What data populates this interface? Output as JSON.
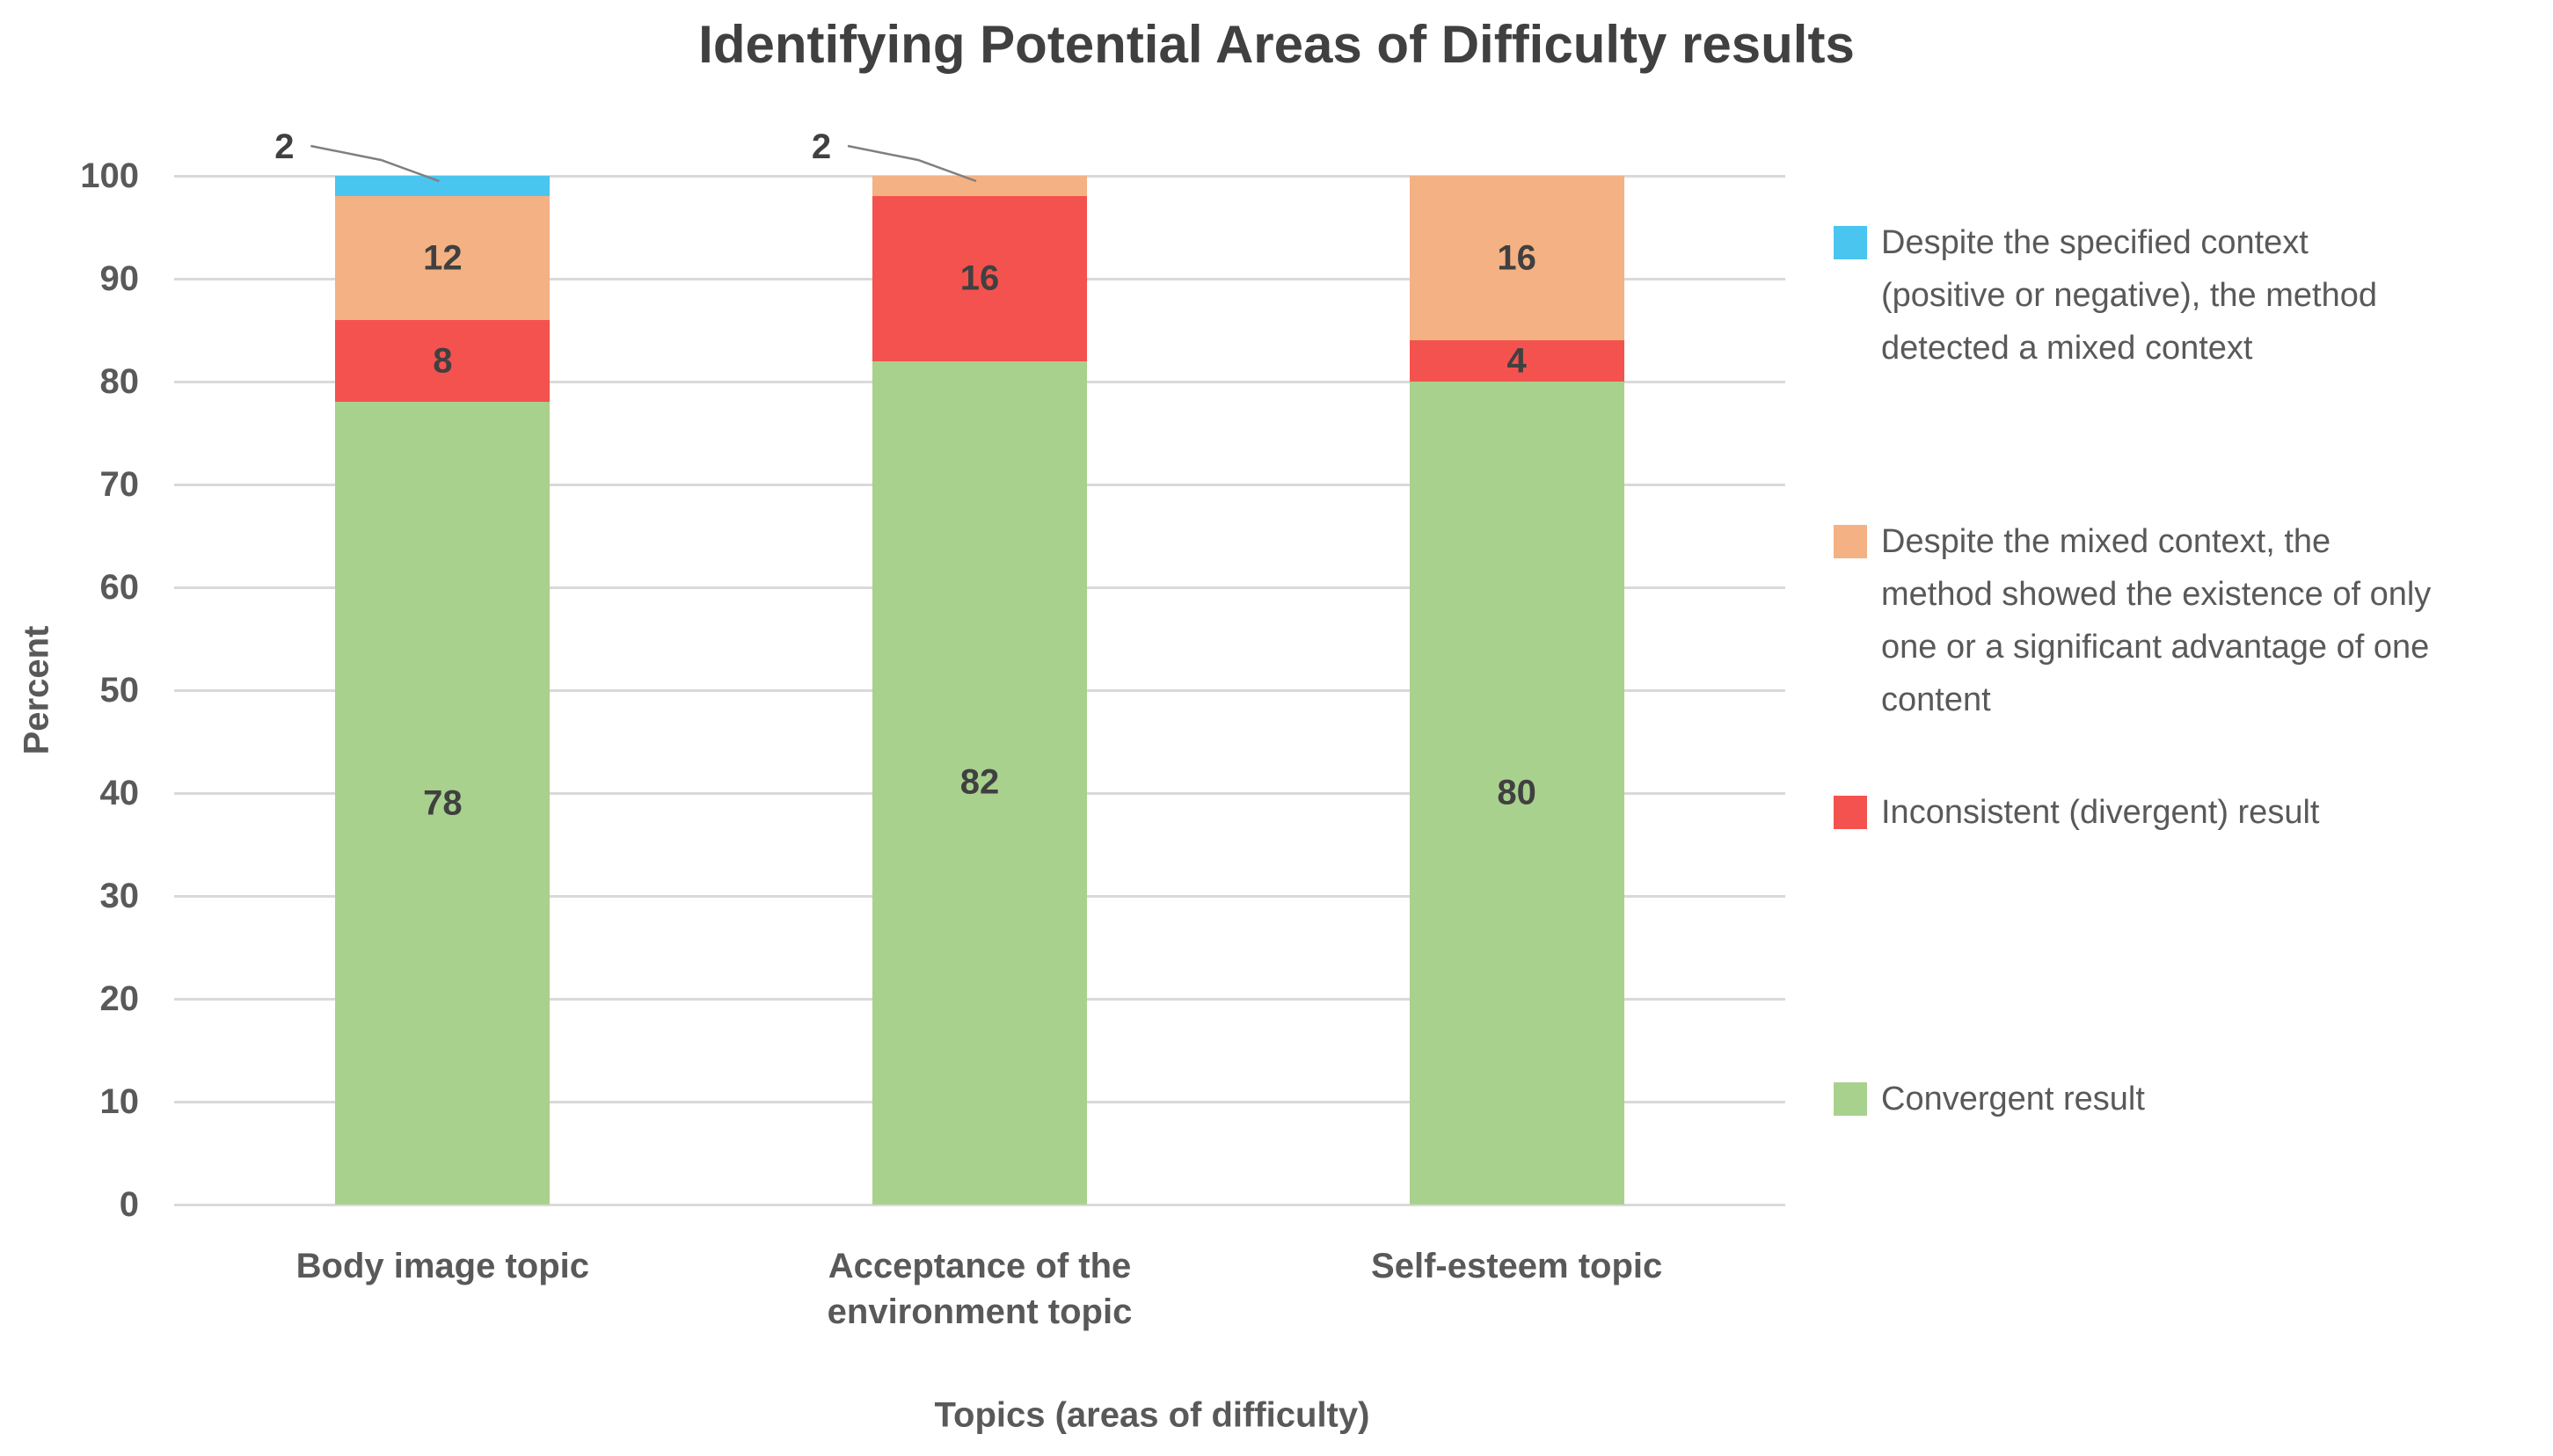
{
  "chart_data": {
    "type": "bar",
    "stacked": true,
    "title": "Identifying Potential Areas of Difficulty results",
    "xlabel": "Topics (areas of difficulty)",
    "ylabel": "Percent",
    "ylim": [
      0,
      100
    ],
    "ytick_step": 10,
    "grid": true,
    "legend_position": "right",
    "categories": [
      "Body image topic",
      "Acceptance of the environment topic",
      "Self-esteem topic"
    ],
    "series": [
      {
        "name": "Convergent result",
        "color": "#A9D18E",
        "values": [
          78,
          82,
          80
        ]
      },
      {
        "name": "Inconsistent (divergent) result",
        "color": "#F4524E",
        "values": [
          8,
          16,
          4
        ]
      },
      {
        "name": "Despite the mixed context, the method showed the existence of only one or a significant advantage of one content",
        "color": "#F4B183",
        "values": [
          12,
          2,
          16
        ]
      },
      {
        "name": "Despite the specified context (positive or negative), the method detected a mixed context",
        "color": "#4AC5F0",
        "values": [
          2,
          0,
          0
        ]
      }
    ],
    "data_labels": {
      "bar_0": [
        78,
        8,
        12
      ],
      "bar_1": [
        82,
        16
      ],
      "bar_2": [
        80,
        4,
        16
      ]
    },
    "callouts": [
      {
        "category_index": 0,
        "series_index": 3,
        "value": 2
      },
      {
        "category_index": 1,
        "series_index": 2,
        "value": 2
      }
    ],
    "legend": {
      "position": "right",
      "entries": [
        {
          "series_index": 3,
          "label": "Despite the specified context\n(positive or negative), the method\ndetected a mixed context"
        },
        {
          "series_index": 2,
          "label": "Despite the mixed context, the\nmethod showed the existence of only\none or a significant advantage of one\ncontent"
        },
        {
          "series_index": 1,
          "label": "Inconsistent (divergent) result"
        },
        {
          "series_index": 0,
          "label": "Convergent result"
        }
      ]
    },
    "style": {
      "title_color": "#404040",
      "text_color": "#595959",
      "gridline_color": "#D9D9D9",
      "data_label_color": "#404040",
      "leader_line_color": "#7F7F7F",
      "background": "#FFFFFF"
    }
  }
}
